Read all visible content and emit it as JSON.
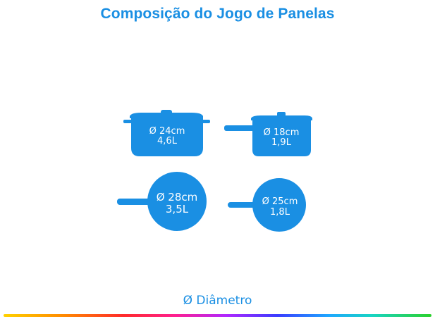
{
  "title": "Composição do Jogo de Panelas",
  "colors": {
    "title": "#1a8fe3",
    "pan_fill": "#1a8fe3",
    "pan_text": "#ffffff"
  },
  "pans": [
    {
      "type": "caçarola",
      "icon": "casserole-pot-icon",
      "line1": "Ø 24cm",
      "line2": "4,6L"
    },
    {
      "type": "panela com cabo",
      "icon": "saucepan-icon",
      "line1": "Ø 18cm",
      "line2": "1,9L"
    },
    {
      "type": "frigideira",
      "icon": "frying-pan-icon",
      "line1": "Ø 28cm",
      "line2": "3,5L"
    },
    {
      "type": "frigideira",
      "icon": "frying-pan-small-icon",
      "line1": "Ø 25cm",
      "line2": "1,8L"
    }
  ],
  "legend": "Ø Diâmetro"
}
